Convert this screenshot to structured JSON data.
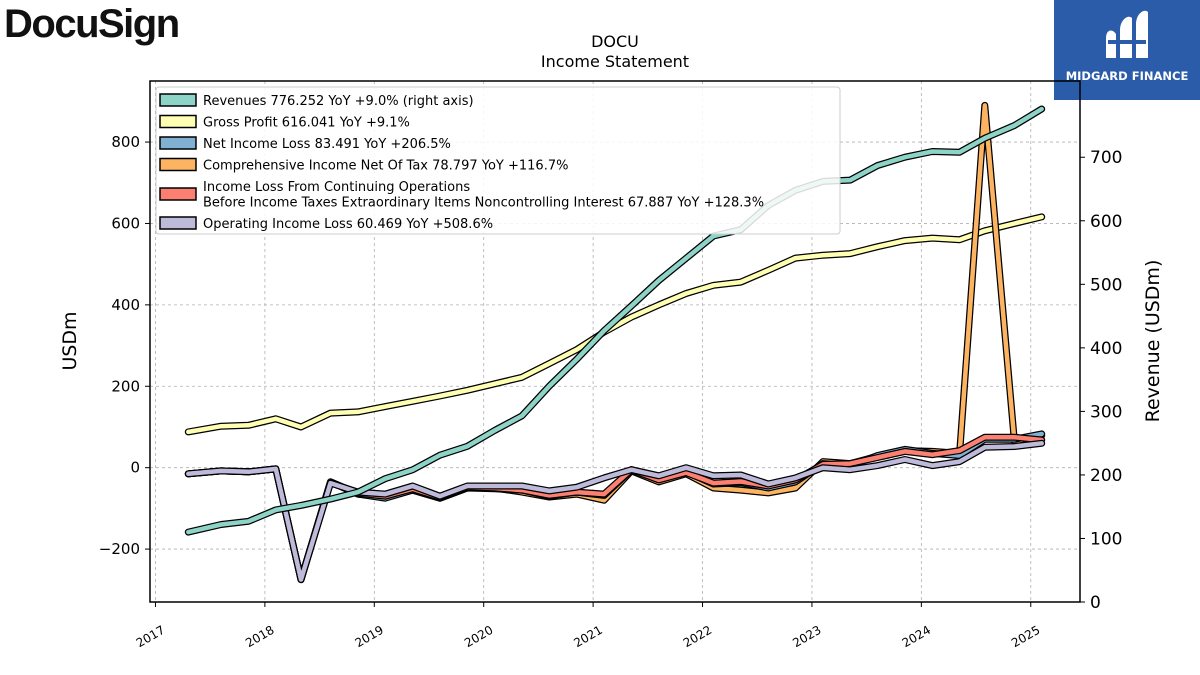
{
  "branding": {
    "left_logo": "DocuSign",
    "right_logo": "MIDGARD FINANCE",
    "right_logo_bg": "#2a5caa"
  },
  "chart_data": {
    "type": "line",
    "title": "DOCU",
    "subtitle": "Income Statement",
    "ylabel": "USDm",
    "y2label": "Revenue (USDm)",
    "ylim": [
      -330,
      950
    ],
    "y2lim": [
      0,
      820
    ],
    "yticks": [
      -200,
      0,
      200,
      400,
      600,
      800
    ],
    "y2ticks": [
      0,
      100,
      200,
      300,
      400,
      500,
      600,
      700
    ],
    "xlim": [
      2016.95,
      2025.45
    ],
    "xticks": [
      2017,
      2018,
      2019,
      2020,
      2021,
      2022,
      2023,
      2024,
      2025
    ],
    "grid": true,
    "legend_position": "top-left",
    "x": [
      2017.3,
      2017.6,
      2017.85,
      2018.1,
      2018.33,
      2018.6,
      2018.85,
      2019.1,
      2019.35,
      2019.6,
      2019.85,
      2020.1,
      2020.35,
      2020.6,
      2020.85,
      2021.1,
      2021.35,
      2021.6,
      2021.85,
      2022.1,
      2022.35,
      2022.6,
      2022.85,
      2023.1,
      2023.35,
      2023.6,
      2023.85,
      2024.1,
      2024.35,
      2024.58,
      2024.85,
      2025.1
    ],
    "series": [
      {
        "name": "Revenues  776.252 YoY +9.0% (right axis)",
        "axis": "right",
        "color": "#8dd3c7",
        "values": [
          110,
          122,
          127,
          145,
          152,
          162,
          173,
          194,
          208,
          231,
          245,
          270,
          293,
          340,
          382,
          427,
          466,
          506,
          541,
          576,
          586,
          624,
          648,
          662,
          664,
          687,
          700,
          709,
          708,
          730,
          750,
          776
        ]
      },
      {
        "name": "Gross Profit  616.041 YoY +9.1%",
        "axis": "left",
        "color": "#ffffb3",
        "values": [
          88,
          102,
          104,
          120,
          100,
          134,
          137,
          150,
          163,
          176,
          190,
          206,
          222,
          256,
          290,
          333,
          370,
          400,
          428,
          448,
          456,
          485,
          515,
          522,
          526,
          543,
          558,
          564,
          560,
          582,
          600,
          616
        ]
      },
      {
        "name": "Net Income Loss  83.491 YoY +206.5%",
        "axis": "left",
        "color": "#80b1d3",
        "values": [
          -15,
          -8,
          -10,
          -3,
          -275,
          -35,
          -65,
          -75,
          -55,
          -75,
          -50,
          -52,
          -55,
          -70,
          -60,
          -68,
          -5,
          -30,
          -10,
          -40,
          -37,
          -50,
          -35,
          10,
          5,
          30,
          45,
          35,
          30,
          70,
          70,
          83
        ]
      },
      {
        "name": "Comprehensive Income Net Of Tax  78.797 YoY +116.7%",
        "axis": "left",
        "color": "#fdb462",
        "values": [
          -15,
          -8,
          -10,
          -3,
          -275,
          -35,
          -65,
          -72,
          -55,
          -75,
          -50,
          -50,
          -60,
          -72,
          -65,
          -80,
          -8,
          -35,
          -15,
          -50,
          -55,
          -62,
          -50,
          15,
          10,
          28,
          42,
          40,
          35,
          890,
          65,
          79
        ]
      },
      {
        "name": "Income Loss From Continuing Operations\nBefore Income Taxes Extraordinary Items Noncontrolling Interest  67.887 YoY +128.3%",
        "axis": "left",
        "color": "#fb8072",
        "values": [
          -15,
          -8,
          -10,
          -3,
          -275,
          -35,
          -63,
          -70,
          -52,
          -73,
          -48,
          -50,
          -55,
          -68,
          -60,
          -65,
          -5,
          -30,
          -12,
          -38,
          -34,
          -45,
          -30,
          8,
          10,
          25,
          40,
          32,
          42,
          75,
          75,
          68
        ]
      },
      {
        "name": "Operating Income Loss  60.469 YoY +508.6%",
        "axis": "left",
        "color": "#bebada",
        "values": [
          -15,
          -8,
          -10,
          -3,
          -275,
          -38,
          -60,
          -65,
          -45,
          -70,
          -45,
          -45,
          -45,
          -57,
          -48,
          -25,
          -5,
          -20,
          0,
          -20,
          -18,
          -40,
          -25,
          0,
          -5,
          5,
          20,
          5,
          15,
          50,
          52,
          60
        ]
      }
    ]
  }
}
